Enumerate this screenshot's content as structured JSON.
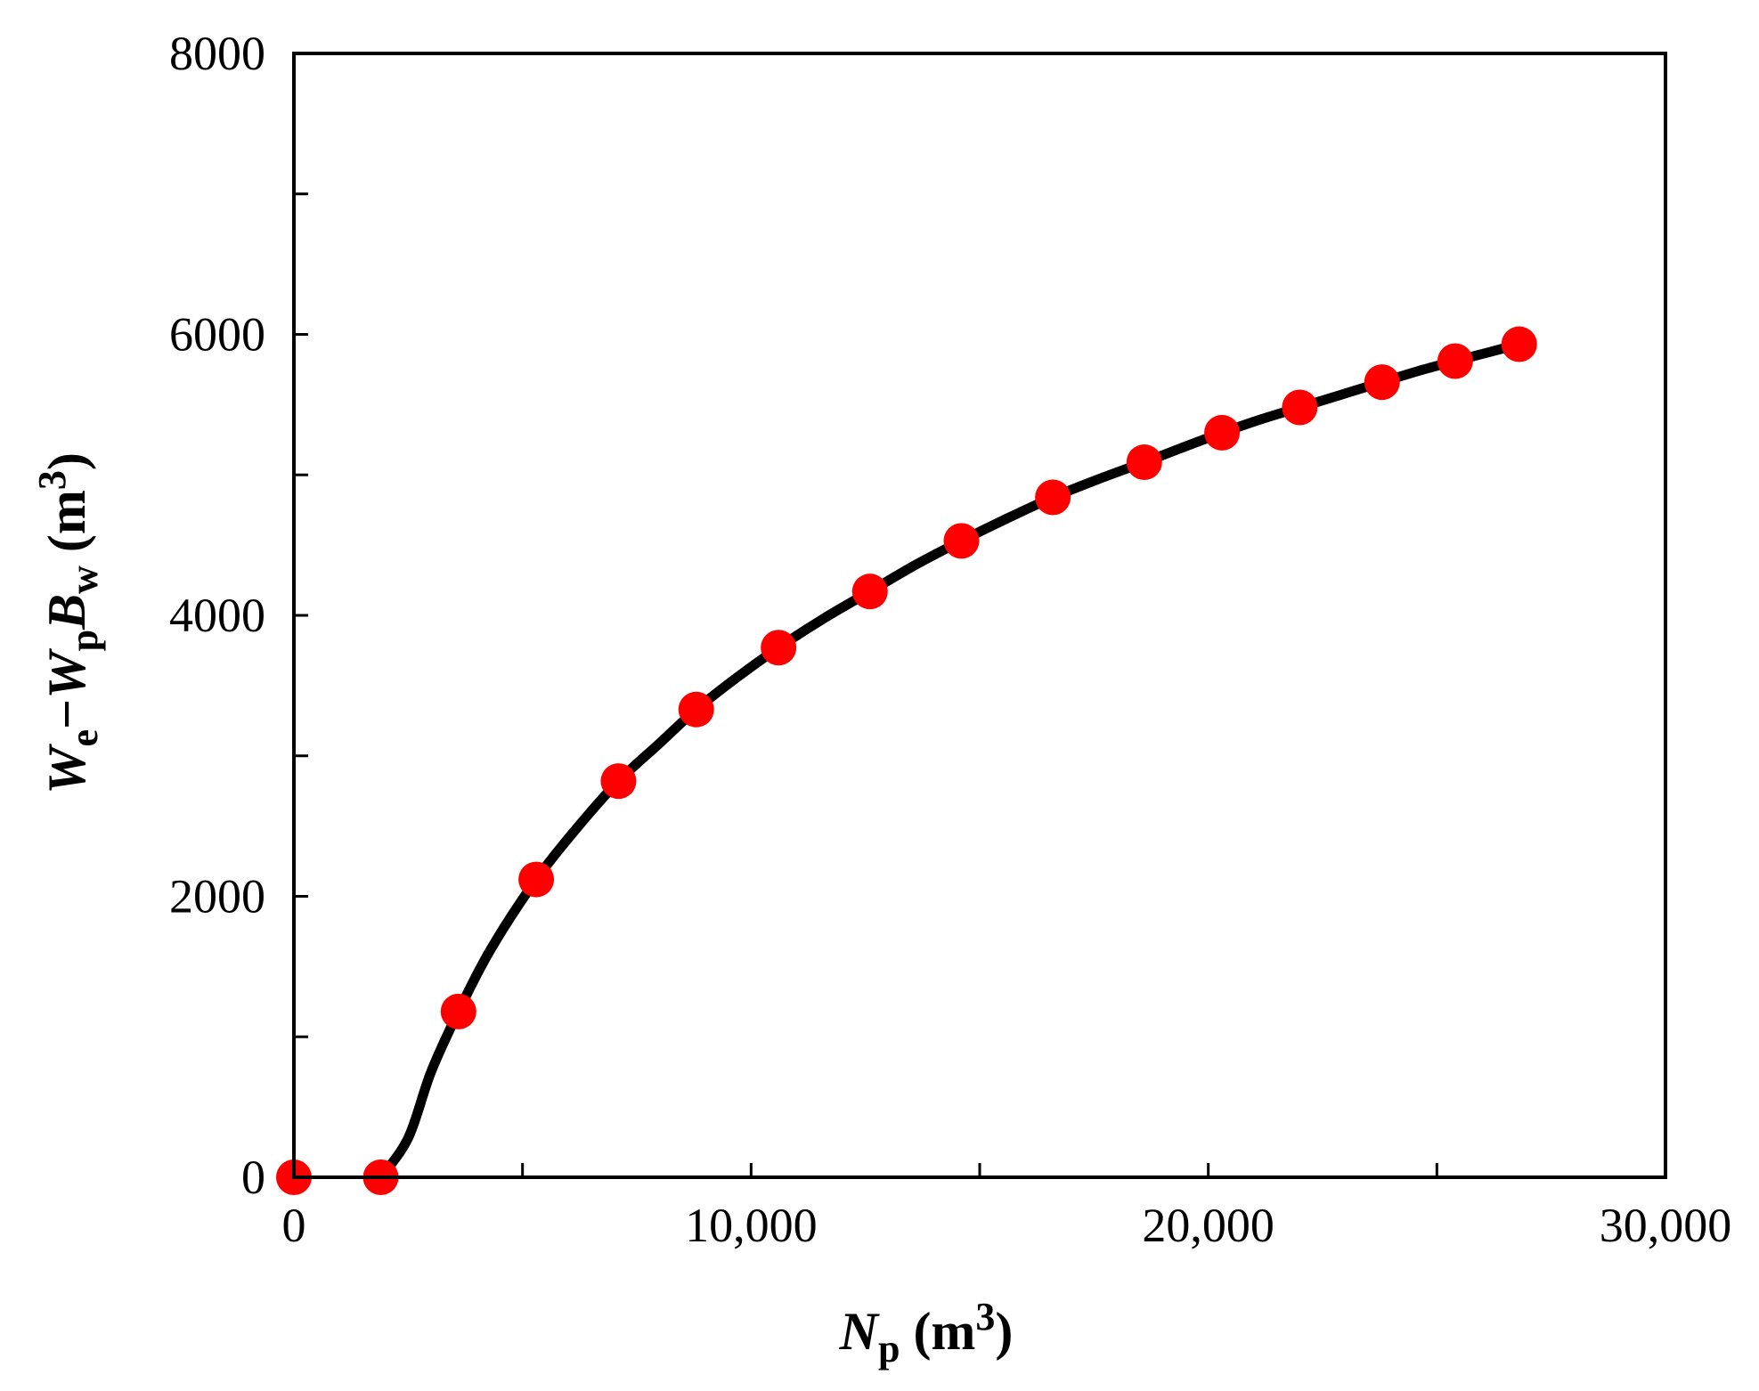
{
  "chart_data": {
    "type": "scatter",
    "xlabel": {
      "main": "N",
      "sub": "p",
      "unit_open": " (m",
      "unit_sup": "3",
      "unit_close": ")"
    },
    "ylabel": {
      "parts": [
        {
          "text": "W",
          "style": "italic"
        },
        {
          "text": "e",
          "style": "sub"
        },
        {
          "text": "−",
          "style": "normal"
        },
        {
          "text": "W",
          "style": "italic"
        },
        {
          "text": "p",
          "style": "sub"
        },
        {
          "text": "B",
          "style": "italic"
        },
        {
          "text": "w",
          "style": "sub"
        },
        {
          "text": "  (m",
          "style": "normal"
        },
        {
          "text": "3",
          "style": "sup"
        },
        {
          "text": ")",
          "style": "normal"
        }
      ]
    },
    "xlim": [
      0,
      30000
    ],
    "ylim": [
      0,
      8000
    ],
    "x_ticks": [
      0,
      5000,
      10000,
      15000,
      20000,
      25000,
      30000
    ],
    "x_tick_labels": [
      {
        "value": 0,
        "label": "0"
      },
      {
        "value": 10000,
        "label": "10,000"
      },
      {
        "value": 20000,
        "label": "20,000"
      },
      {
        "value": 30000,
        "label": "30,000"
      }
    ],
    "y_ticks": [
      0,
      1000,
      2000,
      3000,
      4000,
      5000,
      6000,
      7000,
      8000
    ],
    "y_tick_labels": [
      {
        "value": 0,
        "label": "0"
      },
      {
        "value": 2000,
        "label": "2000"
      },
      {
        "value": 4000,
        "label": "4000"
      },
      {
        "value": 6000,
        "label": "6000"
      },
      {
        "value": 8000,
        "label": "8000"
      }
    ],
    "grid": false,
    "legend": "none",
    "points": {
      "color": "#ff0000",
      "x": [
        0,
        1900,
        3600,
        5300,
        7100,
        8800,
        10600,
        12600,
        14600,
        16600,
        18600,
        20300,
        22000,
        23800,
        25400,
        26800
      ],
      "y": [
        0,
        0,
        1180,
        2120,
        2820,
        3330,
        3770,
        4170,
        4530,
        4840,
        5090,
        5300,
        5480,
        5660,
        5810,
        5930
      ]
    },
    "curve": {
      "color": "#000000",
      "x": [
        1900,
        2500,
        3000,
        3600,
        4300,
        5300,
        6200,
        7100,
        8000,
        8800,
        9700,
        10600,
        11600,
        12600,
        13600,
        14600,
        15600,
        16600,
        17600,
        18600,
        19400,
        20300,
        21100,
        22000,
        22900,
        23800,
        24600,
        25400,
        26100,
        26800
      ],
      "y": [
        0,
        280,
        750,
        1180,
        1620,
        2120,
        2490,
        2820,
        3090,
        3330,
        3560,
        3770,
        3980,
        4170,
        4360,
        4530,
        4690,
        4840,
        4970,
        5090,
        5190,
        5300,
        5390,
        5480,
        5570,
        5660,
        5740,
        5810,
        5870,
        5930
      ]
    }
  }
}
